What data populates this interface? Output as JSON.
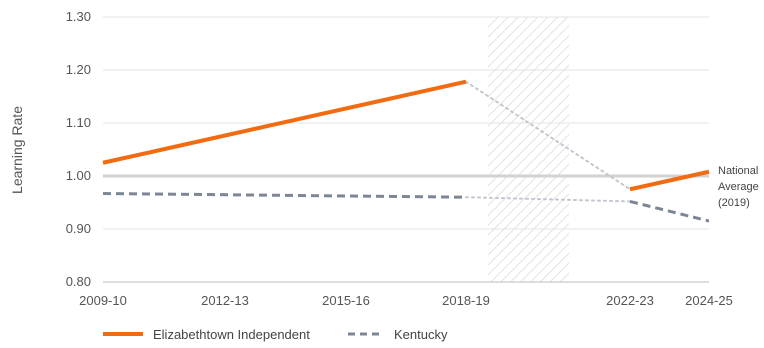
{
  "chart_data": {
    "type": "line",
    "ylabel": "Learning Rate",
    "xlabel": "",
    "ylim": [
      0.8,
      1.3
    ],
    "y_ticks": [
      "0.80",
      "0.90",
      "1.00",
      "1.10",
      "1.20",
      "1.30"
    ],
    "x_ticks": [
      "2009-10",
      "2012-13",
      "2015-16",
      "2018-19",
      "2022-23",
      "2024-25"
    ],
    "grid": "horizontal",
    "reference_line": {
      "value": 1.0,
      "label_lines": [
        "National",
        "Average",
        "(2019)"
      ]
    },
    "shaded_period": {
      "from": "2019-20",
      "to": "2021-22",
      "pattern": "diagonal-hatch"
    },
    "series": [
      {
        "name": "Elizabethtown Independent",
        "color": "#f26b10",
        "style": "solid",
        "segments": [
          [
            [
              "2009-10",
              1.025
            ],
            [
              "2018-19",
              1.178
            ]
          ],
          [
            [
              "2022-23",
              0.975
            ],
            [
              "2024-25",
              1.008
            ]
          ]
        ],
        "bridge": [
          [
            "2018-19",
            1.178
          ],
          [
            "2022-23",
            0.975
          ]
        ]
      },
      {
        "name": "Kentucky",
        "color": "#7d8694",
        "style": "dashed",
        "segments": [
          [
            [
              "2009-10",
              0.967
            ],
            [
              "2018-19",
              0.96
            ]
          ],
          [
            [
              "2022-23",
              0.952
            ],
            [
              "2024-25",
              0.915
            ]
          ]
        ],
        "bridge": [
          [
            "2018-19",
            0.96
          ],
          [
            "2022-23",
            0.952
          ]
        ]
      }
    ],
    "legend": {
      "position": "bottom-left"
    }
  }
}
